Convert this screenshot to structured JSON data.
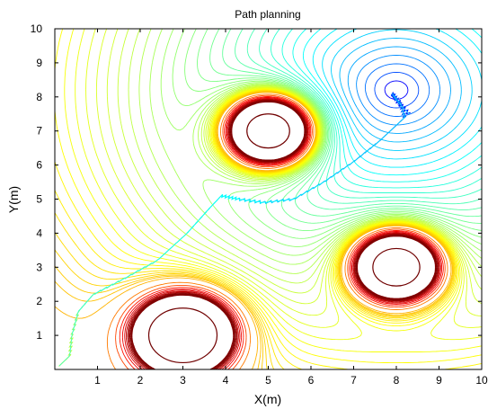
{
  "chart_data": {
    "type": "contour",
    "title": "Path planning",
    "xlabel": "X(m)",
    "ylabel": "Y(m)",
    "xlim": [
      0,
      10
    ],
    "ylim": [
      0,
      10
    ],
    "xticks": [
      "1",
      "2",
      "3",
      "4",
      "5",
      "6",
      "7",
      "8",
      "9",
      "10"
    ],
    "yticks": [
      "1",
      "2",
      "3",
      "4",
      "5",
      "6",
      "7",
      "8",
      "9",
      "10"
    ],
    "goal": [
      8.0,
      8.2
    ],
    "obstacles": [
      {
        "x": 5.0,
        "y": 7.0,
        "r": 0.5
      },
      {
        "x": 8.0,
        "y": 3.0,
        "r": 0.55
      },
      {
        "x": 3.0,
        "y": 1.0,
        "r": 0.8
      }
    ],
    "path": [
      [
        0.1,
        0.1
      ],
      [
        0.35,
        0.4
      ],
      [
        0.4,
        1.0
      ],
      [
        0.55,
        1.7
      ],
      [
        0.9,
        2.2
      ],
      [
        1.6,
        2.65
      ],
      [
        2.4,
        3.2
      ],
      [
        3.1,
        4.0
      ],
      [
        3.6,
        4.7
      ],
      [
        3.9,
        5.1
      ],
      [
        4.3,
        5.0
      ],
      [
        4.9,
        4.9
      ],
      [
        5.6,
        5.0
      ],
      [
        6.3,
        5.5
      ],
      [
        7.0,
        6.1
      ],
      [
        7.6,
        6.7
      ],
      [
        8.2,
        7.4
      ],
      [
        8.1,
        7.8
      ],
      [
        7.9,
        8.1
      ],
      [
        8.0,
        7.9
      ],
      [
        8.3,
        7.5
      ]
    ],
    "colormap": [
      "#0000ff",
      "#00ffff",
      "#ffff00",
      "#ff0000",
      "#800000"
    ],
    "grid": false
  }
}
